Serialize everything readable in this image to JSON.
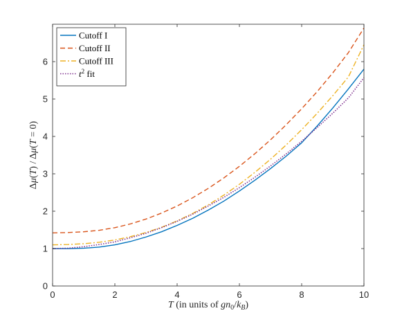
{
  "chart_data": {
    "type": "line",
    "xlabel": "T (in units of gn₀/k_B)",
    "ylabel": "Δμ(T) / Δμ(T = 0)",
    "xlim": [
      0,
      10
    ],
    "ylim": [
      0,
      7
    ],
    "xticks": [
      "0",
      "2",
      "4",
      "6",
      "8",
      "10"
    ],
    "yticks": [
      "0",
      "1",
      "2",
      "3",
      "4",
      "5",
      "6"
    ],
    "grid": false,
    "legend_position": "top-left",
    "x": [
      0,
      0.5,
      1,
      1.5,
      2,
      2.5,
      3,
      3.5,
      4,
      4.5,
      5,
      5.5,
      6,
      6.5,
      7,
      7.5,
      8,
      8.5,
      9,
      9.5,
      10
    ],
    "series": [
      {
        "name": "Cutoff I",
        "style": "solid",
        "color": "#0072BD",
        "values": [
          1.0,
          1.0,
          1.01,
          1.04,
          1.1,
          1.19,
          1.31,
          1.45,
          1.62,
          1.81,
          2.03,
          2.27,
          2.54,
          2.83,
          3.14,
          3.47,
          3.83,
          4.28,
          4.76,
          5.27,
          5.8
        ]
      },
      {
        "name": "Cutoff II",
        "style": "dashed",
        "color": "#D95319",
        "values": [
          1.42,
          1.43,
          1.45,
          1.49,
          1.56,
          1.66,
          1.79,
          1.95,
          2.14,
          2.36,
          2.61,
          2.89,
          3.2,
          3.54,
          3.91,
          4.31,
          4.74,
          5.2,
          5.7,
          6.24,
          6.9
        ]
      },
      {
        "name": "Cutoff III",
        "style": "dashdot",
        "color": "#EDB120",
        "values": [
          1.1,
          1.11,
          1.13,
          1.17,
          1.23,
          1.32,
          1.43,
          1.57,
          1.74,
          1.94,
          2.17,
          2.43,
          2.72,
          3.04,
          3.39,
          3.77,
          4.18,
          4.62,
          5.09,
          5.59,
          6.45
        ]
      },
      {
        "name": "t² fit",
        "legend_base": "t",
        "legend_sup": "2",
        "legend_rest": " fit",
        "style": "dotted",
        "color": "#7E2F8E",
        "values": [
          1.0,
          1.01,
          1.05,
          1.11,
          1.18,
          1.29,
          1.41,
          1.56,
          1.73,
          1.92,
          2.14,
          2.37,
          2.63,
          2.91,
          3.21,
          3.53,
          3.87,
          4.24,
          4.62,
          5.03,
          5.57
        ]
      }
    ]
  }
}
